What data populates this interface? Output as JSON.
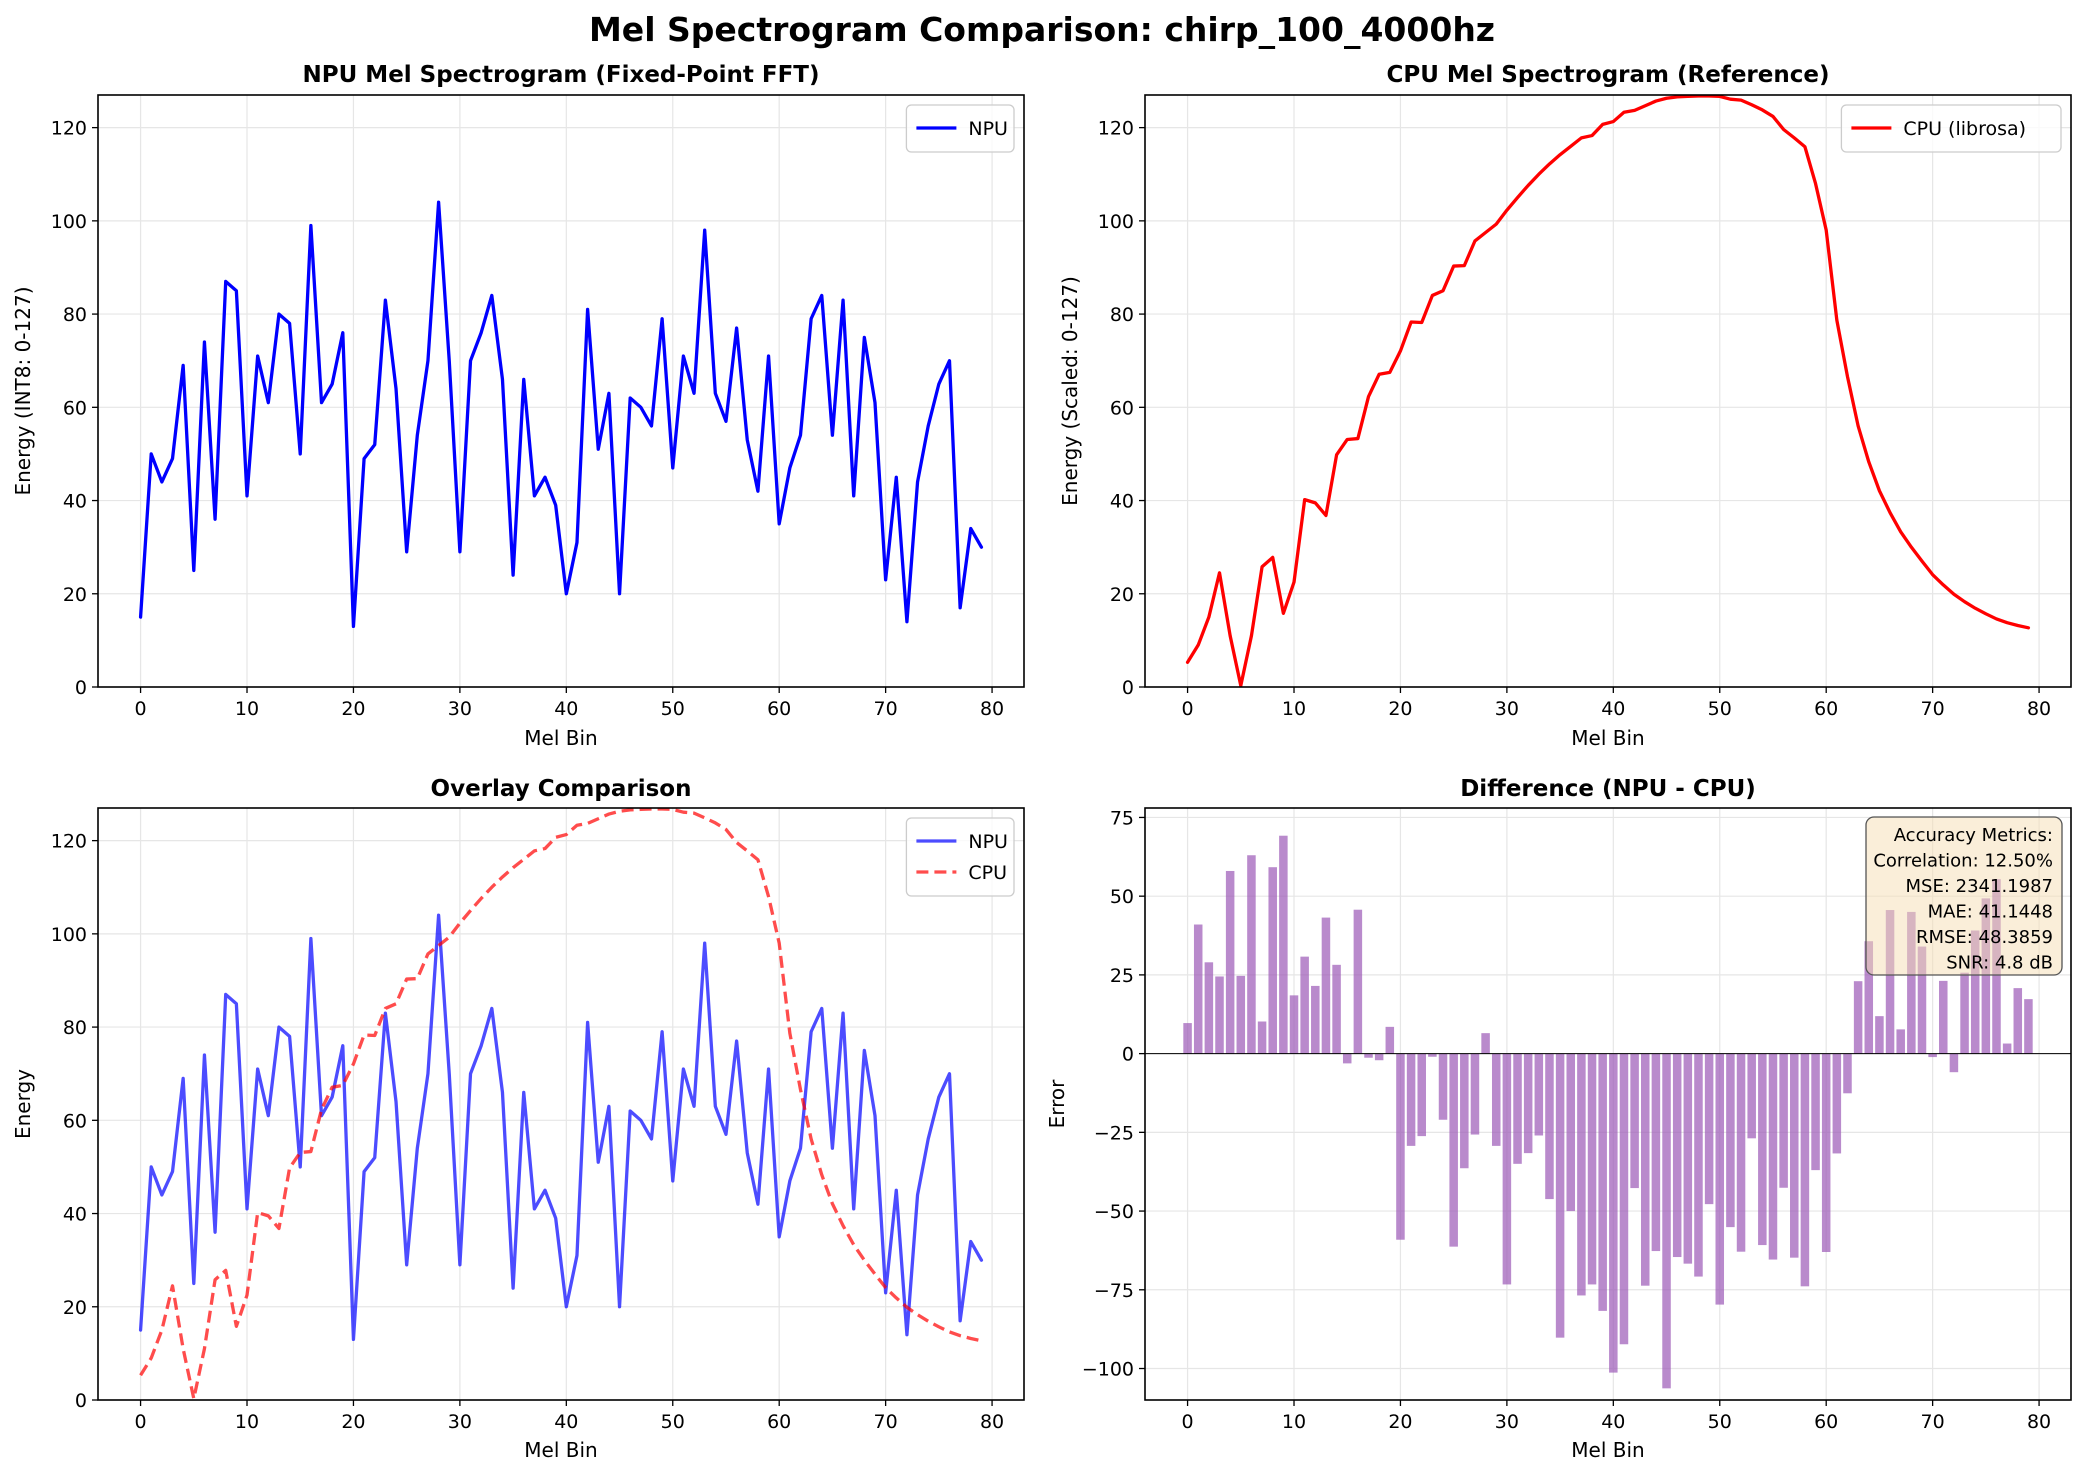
{
  "figure": {
    "suptitle": "Mel Spectrogram Comparison: chirp_100_4000hz"
  },
  "colors": {
    "npu": "#0000ff",
    "cpu": "#ff0000",
    "diff": "#9b59b6",
    "grid": "#e6e6e6",
    "metrics_bg": "#f5deb3"
  },
  "chart_data": [
    {
      "type": "line",
      "title": "NPU Mel Spectrogram (Fixed-Point FFT)",
      "xlabel": "Mel Bin",
      "ylabel": "Energy (INT8: 0-127)",
      "xlim": [
        -4,
        83
      ],
      "ylim": [
        0,
        127
      ],
      "xticks": [
        0,
        10,
        20,
        30,
        40,
        50,
        60,
        70,
        80
      ],
      "yticks": [
        0,
        20,
        40,
        60,
        80,
        100,
        120
      ],
      "legend": "top-right",
      "grid": true,
      "series": [
        {
          "name": "NPU",
          "ref": "npu",
          "color": "#0000ff",
          "style": "solid"
        }
      ]
    },
    {
      "type": "line",
      "title": "CPU Mel Spectrogram (Reference)",
      "xlabel": "Mel Bin",
      "ylabel": "Energy (Scaled: 0-127)",
      "xlim": [
        -4,
        83
      ],
      "ylim": [
        0,
        127
      ],
      "xticks": [
        0,
        10,
        20,
        30,
        40,
        50,
        60,
        70,
        80
      ],
      "yticks": [
        0,
        20,
        40,
        60,
        80,
        100,
        120
      ],
      "legend": "top-right",
      "grid": true,
      "series": [
        {
          "name": "CPU (librosa)",
          "ref": "cpu",
          "color": "#ff0000",
          "style": "solid"
        }
      ]
    },
    {
      "type": "line",
      "title": "Overlay Comparison",
      "xlabel": "Mel Bin",
      "ylabel": "Energy",
      "xlim": [
        -4,
        83
      ],
      "ylim": [
        0,
        127
      ],
      "xticks": [
        0,
        10,
        20,
        30,
        40,
        50,
        60,
        70,
        80
      ],
      "yticks": [
        0,
        20,
        40,
        60,
        80,
        100,
        120
      ],
      "legend": "top-right",
      "grid": true,
      "series": [
        {
          "name": "NPU",
          "ref": "npu",
          "color": "#0000ff",
          "style": "solid",
          "alpha": 0.7
        },
        {
          "name": "CPU",
          "ref": "cpu",
          "color": "#ff0000",
          "style": "dashed",
          "alpha": 0.7
        }
      ]
    },
    {
      "type": "bar",
      "title": "Difference (NPU - CPU)",
      "xlabel": "Mel Bin",
      "ylabel": "Error",
      "xlim": [
        -4,
        83
      ],
      "ylim": [
        -110,
        78
      ],
      "xticks": [
        0,
        10,
        20,
        30,
        40,
        50,
        60,
        70,
        80
      ],
      "yticks": [
        -100,
        -75,
        -50,
        -25,
        0,
        25,
        50,
        75
      ],
      "grid": true,
      "series": [
        {
          "ref": "diff",
          "color": "#9b59b6"
        }
      ],
      "metrics": [
        "Accuracy Metrics:",
        "Correlation: 12.50%",
        "MSE: 2341.1987",
        "MAE: 41.1448",
        "RMSE: 48.3859",
        "SNR: 4.8 dB"
      ]
    }
  ],
  "data": {
    "x": [
      0,
      1,
      2,
      3,
      4,
      5,
      6,
      7,
      8,
      9,
      10,
      11,
      12,
      13,
      14,
      15,
      16,
      17,
      18,
      19,
      20,
      21,
      22,
      23,
      24,
      25,
      26,
      27,
      28,
      29,
      30,
      31,
      32,
      33,
      34,
      35,
      36,
      37,
      38,
      39,
      40,
      41,
      42,
      43,
      44,
      45,
      46,
      47,
      48,
      49,
      50,
      51,
      52,
      53,
      54,
      55,
      56,
      57,
      58,
      59,
      60,
      61,
      62,
      63,
      64,
      65,
      66,
      67,
      68,
      69,
      70,
      71,
      72,
      73,
      74,
      75,
      76,
      77,
      78,
      79
    ],
    "npu": [
      15,
      50,
      44,
      49,
      69,
      25,
      74,
      36,
      87,
      85,
      41,
      71,
      61,
      80,
      78,
      50,
      99,
      61,
      65,
      76,
      13,
      49,
      52,
      83,
      64,
      29,
      54,
      70,
      104,
      70,
      29,
      70,
      76,
      84,
      66,
      24,
      66,
      41,
      45,
      39,
      20,
      31,
      81,
      51,
      63,
      20,
      62,
      60,
      56,
      79,
      47,
      71,
      63,
      98,
      63,
      57,
      77,
      53,
      42,
      71,
      35,
      47,
      54,
      79,
      84,
      54,
      83,
      41,
      75,
      61,
      23,
      45,
      14,
      44,
      56,
      65,
      70,
      17,
      34,
      30
    ],
    "cpu": [
      5.3,
      9,
      15,
      24.5,
      11,
      0.3,
      11,
      25.8,
      27.8,
      15.8,
      22.5,
      40.2,
      39.5,
      36.8,
      49.8,
      53.1,
      53.3,
      62.3,
      67.1,
      67.5,
      72.1,
      78.3,
      78.2,
      84,
      85,
      90.3,
      90.4,
      95.7,
      97.5,
      99.3,
      102.3,
      105,
      107.6,
      110,
      112.2,
      114.2,
      116,
      117.8,
      118.3,
      120.7,
      121.3,
      123.3,
      123.7,
      124.7,
      125.7,
      126.3,
      126.6,
      126.7,
      126.8,
      126.8,
      126.7,
      126.1,
      125.9,
      124.9,
      123.8,
      122.4,
      119.6,
      117.8,
      115.9,
      108,
      98,
      78.7,
      66.6,
      56,
      48.3,
      42.1,
      37.4,
      33.3,
      30,
      27,
      24.1,
      21.9,
      19.9,
      18.3,
      16.9,
      15.7,
      14.6,
      13.8,
      13.2,
      12.7
    ],
    "diff": [
      9.7,
      41,
      29,
      24.5,
      58,
      24.7,
      63,
      10.2,
      59.2,
      69.2,
      18.5,
      30.8,
      21.5,
      43.2,
      28.2,
      -3.1,
      45.7,
      -1.3,
      -2.1,
      8.5,
      -59.1,
      -29.3,
      -26.2,
      -1,
      -21,
      -61.3,
      -36.4,
      -25.7,
      6.5,
      -29.3,
      -73.3,
      -35,
      -31.6,
      -26,
      -46.2,
      -90.2,
      -50,
      -76.8,
      -73.3,
      -81.7,
      -101.3,
      -92.3,
      -42.7,
      -73.7,
      -62.7,
      -106.3,
      -64.6,
      -66.7,
      -70.8,
      -47.8,
      -79.7,
      -55.1,
      -62.9,
      -26.9,
      -60.8,
      -65.4,
      -42.6,
      -64.8,
      -73.9,
      -37,
      -63,
      -31.7,
      -12.6,
      23,
      35.7,
      11.9,
      45.6,
      7.7,
      45,
      34,
      -1.1,
      23.1,
      -5.9,
      25.7,
      39.1,
      49.3,
      55.4,
      3.2,
      20.8,
      17.3
    ]
  }
}
